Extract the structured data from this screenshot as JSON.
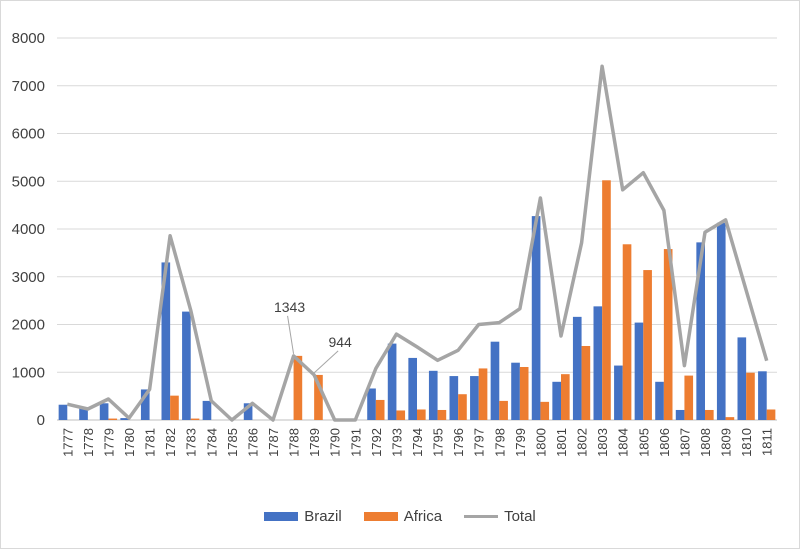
{
  "chart_data": {
    "type": "bar",
    "title": "",
    "xlabel": "",
    "ylabel": "",
    "ylim": [
      0,
      8000
    ],
    "yticks": [
      0,
      1000,
      2000,
      3000,
      4000,
      5000,
      6000,
      7000,
      8000
    ],
    "categories": [
      "1777",
      "1778",
      "1779",
      "1780",
      "1781",
      "1782",
      "1783",
      "1784",
      "1785",
      "1786",
      "1787",
      "1788",
      "1789",
      "1790",
      "1791",
      "1792",
      "1793",
      "1794",
      "1795",
      "1796",
      "1797",
      "1798",
      "1799",
      "1800",
      "1801",
      "1802",
      "1803",
      "1804",
      "1805",
      "1806",
      "1807",
      "1808",
      "1809",
      "1810",
      "1811"
    ],
    "series": [
      {
        "name": "Brazil",
        "kind": "bar",
        "color": "#4472C4",
        "values": [
          320,
          250,
          350,
          40,
          640,
          3300,
          2270,
          400,
          0,
          350,
          0,
          0,
          0,
          0,
          0,
          660,
          1600,
          1300,
          1030,
          920,
          920,
          1640,
          1200,
          4270,
          800,
          2160,
          2380,
          1140,
          2040,
          800,
          210,
          3720,
          4130,
          1730,
          1020
        ]
      },
      {
        "name": "Africa",
        "kind": "bar",
        "color": "#ED7D31",
        "values": [
          0,
          0,
          30,
          0,
          0,
          510,
          30,
          0,
          0,
          0,
          0,
          1343,
          944,
          0,
          0,
          420,
          200,
          220,
          210,
          540,
          1080,
          400,
          1110,
          380,
          960,
          1550,
          5020,
          3680,
          3140,
          3580,
          930,
          210,
          60,
          990,
          220
        ]
      },
      {
        "name": "Total",
        "kind": "line",
        "color": "#A5A5A5",
        "values": [
          330,
          230,
          440,
          40,
          640,
          3860,
          2300,
          400,
          0,
          350,
          0,
          1343,
          944,
          0,
          0,
          1080,
          1800,
          1530,
          1250,
          1460,
          2000,
          2040,
          2330,
          4650,
          1760,
          3710,
          7410,
          4820,
          5180,
          4390,
          1140,
          3930,
          4190,
          2720,
          1240
        ]
      }
    ],
    "annotations": [
      {
        "category": "1788",
        "label": "1343"
      },
      {
        "category": "1789",
        "label": "944"
      }
    ],
    "legend": [
      "Brazil",
      "Africa",
      "Total"
    ],
    "legend_position": "bottom",
    "grid": true
  }
}
